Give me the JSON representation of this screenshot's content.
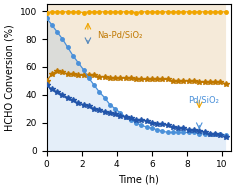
{
  "chart_data": {
    "type": "line",
    "xlabel": "Time (h)",
    "ylabel": "HCHO Conversion (%)",
    "xlim": [
      0,
      10.5
    ],
    "ylim": [
      0,
      105
    ],
    "xticks": [
      0,
      2,
      4,
      6,
      8,
      10
    ],
    "yticks": [
      0,
      20,
      40,
      60,
      80,
      100
    ],
    "grid": false,
    "x": [
      0.0,
      0.3,
      0.6,
      0.9,
      1.2,
      1.5,
      1.8,
      2.1,
      2.4,
      2.7,
      3.0,
      3.3,
      3.6,
      3.9,
      4.2,
      4.5,
      4.8,
      5.1,
      5.4,
      5.7,
      6.0,
      6.3,
      6.6,
      6.9,
      7.2,
      7.5,
      7.8,
      8.1,
      8.4,
      8.7,
      9.0,
      9.3,
      9.6,
      9.9,
      10.2
    ],
    "series": [
      {
        "color": "#f0a500",
        "marker": "circle",
        "line_style": "solid",
        "values": [
          99,
          99.5,
          99.5,
          99.5,
          99.5,
          99.5,
          99.5,
          99,
          99.5,
          99.5,
          99.5,
          99.5,
          99.5,
          99.5,
          99.5,
          99.5,
          99.5,
          99,
          99.5,
          99.5,
          99.5,
          99.5,
          99.5,
          99.5,
          99.5,
          99.5,
          99.5,
          99.5,
          99.5,
          99.5,
          99.5,
          99.5,
          99.5,
          99.5,
          99.5
        ]
      },
      {
        "color": "#c07800",
        "marker": "star",
        "line_style": "solid",
        "values": [
          50,
          55,
          57,
          56,
          55,
          55,
          54,
          54,
          54,
          54,
          53,
          53,
          52,
          52,
          52,
          52,
          52,
          51,
          51,
          51,
          51,
          51,
          51,
          51,
          50,
          50,
          50,
          50,
          50,
          49,
          49,
          49,
          49,
          49,
          48
        ]
      },
      {
        "color": "#4a90d9",
        "marker": "circle",
        "line_style": "solid",
        "values": [
          95,
          90,
          85,
          80,
          74,
          68,
          63,
          58,
          52,
          47,
          42,
          38,
          33,
          30,
          27,
          24,
          22,
          20,
          18,
          17,
          16,
          15,
          14,
          13,
          13,
          13,
          13,
          13,
          13,
          12,
          12,
          12,
          12,
          12,
          11
        ]
      },
      {
        "color": "#2255aa",
        "marker": "star",
        "line_style": "solid",
        "values": [
          47,
          44,
          42,
          40,
          38,
          36,
          34,
          33,
          32,
          30,
          29,
          28,
          27,
          26,
          25,
          24,
          23,
          22,
          22,
          21,
          20,
          19,
          19,
          18,
          17,
          16,
          16,
          15,
          15,
          14,
          13,
          12,
          12,
          11,
          10
        ]
      }
    ],
    "annotations": [
      {
        "text": "Na-Pd/SiO₂",
        "x": 2.85,
        "y": 83,
        "color": "#c07800"
      },
      {
        "text": "Pd/SiO₂",
        "x": 8.05,
        "y": 36,
        "color": "#4a90d9"
      }
    ],
    "arrows": [
      {
        "x": 2.35,
        "from": 85,
        "to": 94,
        "color": "#f0a500"
      },
      {
        "x": 2.35,
        "from": 81,
        "to": 74,
        "color": "#5588bb"
      },
      {
        "x": 8.7,
        "from": 38,
        "to": 28,
        "color": "#f0a500"
      },
      {
        "x": 8.7,
        "from": 20,
        "to": 13,
        "color": "#4a90d9"
      }
    ]
  }
}
